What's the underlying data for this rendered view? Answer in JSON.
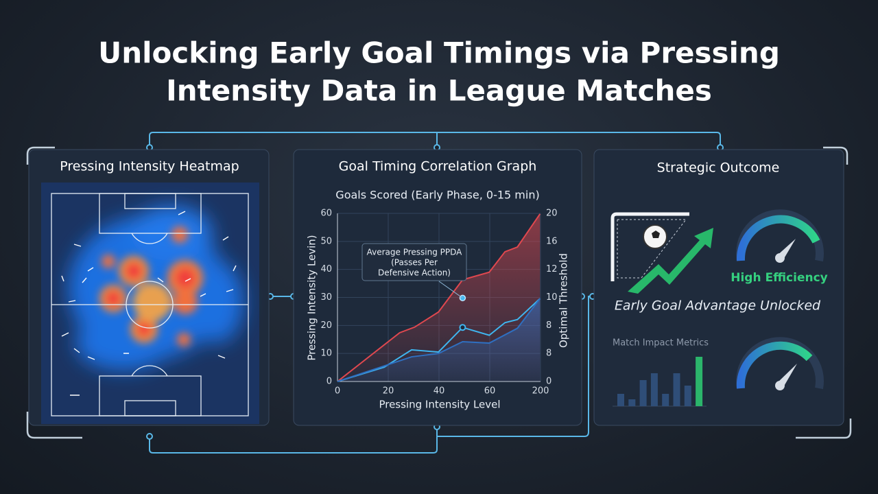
{
  "title": [
    "Unlocking Early Goal Timings via Pressing",
    "Intensity Data in League Matches"
  ],
  "heatmap": {
    "title": "Pressing Intensity Heatmap"
  },
  "graph": {
    "title": "Goal Timing Correlation Graph",
    "subtitle": "Goals Scored (Early Phase, 0-15 min)",
    "y_label": "Pressing Intensity Levin)",
    "y2_label": "Optimal Threshold",
    "x_label": "Pressing Intensity Level",
    "annotation": [
      "Average Pressing PPDA",
      "(Passes Per",
      "Defensive Action)"
    ],
    "xlim": [
      0,
      80
    ],
    "ylim": [
      0,
      60
    ],
    "yticks": [
      0,
      10,
      20,
      30,
      40,
      50,
      60
    ],
    "x_tick_labels": [
      "0",
      "20",
      "40",
      "60",
      "200"
    ],
    "y2_tick_labels": [
      "0",
      "8",
      "8",
      "10",
      "12",
      "16",
      "20"
    ],
    "series": [
      {
        "color": "#e0484f",
        "x": [
          0,
          24.5,
          30.4,
          39.8,
          49.3,
          59.8,
          66,
          70.9,
          79.8
        ],
        "values": [
          0,
          17.4,
          19.4,
          24.8,
          36.3,
          39,
          46.3,
          48,
          59.8
        ]
      },
      {
        "color": "#3fb6f0",
        "x": [
          0,
          18.4,
          29.2,
          39.8,
          49.3,
          59.8,
          66,
          70.9,
          79.8
        ],
        "values": [
          0,
          5.1,
          11.3,
          10.5,
          19.3,
          16.5,
          21,
          22.1,
          29.6
        ]
      },
      {
        "color": "#2f6fc0",
        "x": [
          0,
          29.2,
          39.8,
          49.3,
          59.8,
          70.9,
          79.8
        ],
        "values": [
          0,
          8.8,
          10,
          14.2,
          13.7,
          19,
          29.6
        ]
      }
    ]
  },
  "outcome": {
    "title": "Strategic Outcome",
    "gauge_label": "High Efficiency",
    "headline": "Early Goal Advantage Unlocked",
    "metrics_title": "Match Impact Metrics",
    "metric_bars": [
      18,
      10,
      38,
      48,
      18,
      48,
      30,
      72
    ]
  }
}
